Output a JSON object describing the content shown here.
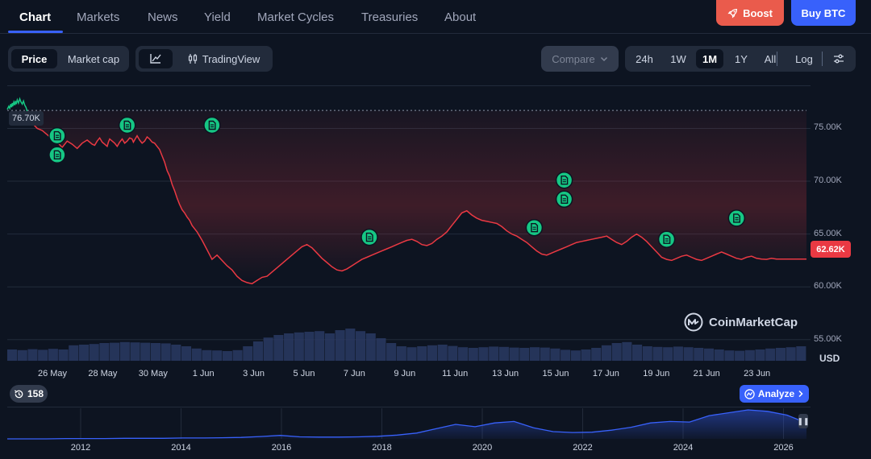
{
  "nav": {
    "tabs": [
      {
        "label": "Chart"
      },
      {
        "label": "Markets"
      },
      {
        "label": "News"
      },
      {
        "label": "Yield"
      },
      {
        "label": "Market Cycles"
      },
      {
        "label": "Treasuries"
      },
      {
        "label": "About"
      }
    ],
    "boost_label": "Boost",
    "buy_label": "Buy BTC"
  },
  "toolbar": {
    "price_label": "Price",
    "marketcap_label": "Market cap",
    "tradingview_label": "TradingView",
    "compare_label": "Compare",
    "ranges": [
      {
        "label": "24h"
      },
      {
        "label": "1W"
      },
      {
        "label": "1M"
      },
      {
        "label": "1Y"
      },
      {
        "label": "All"
      }
    ],
    "log_label": "Log"
  },
  "chart_data": {
    "type": "line",
    "ylim": [
      53000,
      79000
    ],
    "yticks": [
      "75.00K",
      "70.00K",
      "65.00K",
      "60.00K",
      "55.00K"
    ],
    "ytick_values": [
      75000,
      70000,
      65000,
      60000,
      55000
    ],
    "ylabel": "USD",
    "xticks": [
      "26 May",
      "28 May",
      "30 May",
      "1 Jun",
      "3 Jun",
      "5 Jun",
      "7 Jun",
      "9 Jun",
      "11 Jun",
      "13 Jun",
      "15 Jun",
      "17 Jun",
      "19 Jun",
      "21 Jun",
      "23 Jun"
    ],
    "reference_label": "76.70K",
    "reference_value": 76700,
    "current_label": "62.62K",
    "current_value": 62620,
    "series": [
      {
        "x": [
          0.0,
          0.06,
          0.1,
          0.14,
          0.17,
          0.2,
          0.22,
          0.26,
          0.3,
          0.33,
          0.36,
          0.4,
          0.45,
          0.5,
          0.55,
          0.6,
          0.65,
          0.7,
          0.75,
          0.8,
          0.85,
          0.88,
          0.92,
          1.0,
          1.2,
          1.4,
          1.6,
          1.8,
          2.0,
          2.2,
          2.4,
          2.6,
          2.8,
          3.0,
          3.2,
          3.4,
          3.5,
          3.6,
          3.7,
          3.8,
          3.9,
          4.0,
          4.05,
          4.1,
          4.2,
          4.3,
          4.4,
          4.5,
          4.6,
          4.7,
          4.8,
          4.9,
          5.0,
          5.05,
          5.1,
          5.2,
          5.3,
          5.4,
          5.5,
          5.6,
          5.7,
          5.8,
          5.9,
          6.0,
          6.1,
          6.2,
          6.3,
          6.4,
          6.5,
          6.6,
          6.7,
          6.8,
          6.9,
          7.0,
          7.1,
          7.2,
          7.3,
          7.4,
          7.5,
          7.6,
          7.8,
          8.0,
          8.2,
          8.4,
          8.6,
          8.8,
          9.0,
          9.2,
          9.4,
          9.6,
          9.8,
          10.0,
          10.2,
          10.4,
          10.6,
          10.8,
          11.0,
          11.2,
          11.4,
          11.6,
          11.8,
          12.0,
          12.2,
          12.4,
          12.6,
          12.8,
          13.0,
          13.2,
          13.4,
          13.6,
          13.8,
          14.0,
          14.2,
          14.4,
          14.6,
          14.8,
          15.0,
          15.2,
          15.4,
          15.6,
          15.8,
          16.0,
          16.2,
          16.4,
          16.6,
          16.8,
          17.0,
          17.2,
          17.4,
          17.6,
          17.8,
          18.0,
          18.2,
          18.4,
          18.6,
          18.8,
          19.0,
          19.2,
          19.4,
          19.6,
          19.8,
          20.0,
          20.2,
          20.4,
          20.6,
          20.8,
          21.0,
          21.2,
          21.4,
          21.6,
          21.8,
          22.0,
          22.2,
          22.4,
          22.6,
          22.8,
          23.0,
          23.2,
          23.4,
          23.6,
          23.8,
          24.0,
          24.2,
          24.4,
          24.6,
          24.8,
          25.0,
          25.2,
          25.4,
          25.6,
          25.8,
          26.0,
          26.2,
          26.4,
          26.6,
          26.8,
          27.0,
          27.2,
          27.4,
          27.6,
          27.8,
          28.0,
          28.2,
          28.4,
          28.6,
          28.8,
          29.0,
          29.2,
          29.4,
          29.6,
          29.8,
          30.0,
          30.2,
          30.4,
          30.6,
          30.8,
          31.0,
          31.2,
          31.4,
          31.6,
          31.8,
          32.0
        ],
        "y": [
          76800,
          77100,
          76900,
          77300,
          77000,
          77400,
          77100,
          77500,
          77200,
          77600,
          77300,
          77700,
          77400,
          77800,
          77500,
          77300,
          77600,
          77200,
          77000,
          76600,
          76300,
          76000,
          75800,
          75500,
          75000,
          74800,
          74400,
          74000,
          73700,
          73200,
          73800,
          73500,
          73100,
          73600,
          73900,
          73500,
          73400,
          73800,
          74100,
          73700,
          73500,
          73300,
          73700,
          74000,
          73800,
          73600,
          73300,
          73700,
          74000,
          73600,
          73800,
          74100,
          74000,
          73700,
          73900,
          74300,
          73900,
          73600,
          73800,
          74200,
          74000,
          73700,
          73600,
          73300,
          73000,
          72400,
          71800,
          71000,
          70500,
          69700,
          69100,
          68400,
          67800,
          67300,
          67000,
          66600,
          66300,
          65800,
          65500,
          65200,
          64400,
          63500,
          62600,
          63000,
          62500,
          62000,
          61600,
          61000,
          60600,
          60400,
          60300,
          60600,
          60900,
          61000,
          61400,
          61800,
          62200,
          62600,
          63000,
          63400,
          63800,
          64000,
          63700,
          63200,
          62700,
          62300,
          61900,
          61600,
          61500,
          61700,
          62000,
          62300,
          62600,
          62800,
          63000,
          63200,
          63400,
          63600,
          63800,
          64000,
          64200,
          64400,
          64500,
          64300,
          64000,
          63900,
          64100,
          64500,
          64800,
          65200,
          65800,
          66400,
          67000,
          67200,
          66800,
          66500,
          66300,
          66200,
          66100,
          66000,
          65700,
          65300,
          65000,
          64800,
          64500,
          64200,
          63800,
          63400,
          63100,
          63000,
          63200,
          63400,
          63600,
          63800,
          64000,
          64200,
          64300,
          64400,
          64500,
          64600,
          64700,
          64800,
          64500,
          64200,
          64000,
          64300,
          64700,
          65000,
          64700,
          64300,
          63800,
          63300,
          62800,
          62600,
          62500,
          62700,
          62900,
          63000,
          62800,
          62600,
          62500,
          62700,
          62900,
          63100,
          63300,
          63100,
          62900,
          62700,
          62600,
          62800,
          62900,
          62700,
          62620,
          62600,
          62700,
          62620,
          62620,
          62620,
          62620,
          62620,
          62620,
          62620
        ]
      }
    ],
    "events": [
      {
        "x": 2.0,
        "y": 74300
      },
      {
        "x": 2.0,
        "y": 72500
      },
      {
        "x": 4.8,
        "y": 75300
      },
      {
        "x": 8.2,
        "y": 75300
      },
      {
        "x": 14.5,
        "y": 64700
      },
      {
        "x": 21.1,
        "y": 65600
      },
      {
        "x": 22.3,
        "y": 70100
      },
      {
        "x": 22.3,
        "y": 68300
      },
      {
        "x": 26.4,
        "y": 64500
      },
      {
        "x": 29.2,
        "y": 66500
      }
    ],
    "volume": [
      0.35,
      0.33,
      0.36,
      0.34,
      0.37,
      0.35,
      0.48,
      0.5,
      0.52,
      0.55,
      0.56,
      0.58,
      0.57,
      0.56,
      0.55,
      0.54,
      0.5,
      0.45,
      0.38,
      0.33,
      0.32,
      0.3,
      0.33,
      0.45,
      0.6,
      0.72,
      0.8,
      0.85,
      0.88,
      0.9,
      0.92,
      0.85,
      0.95,
      1.0,
      0.92,
      0.85,
      0.7,
      0.55,
      0.45,
      0.42,
      0.45,
      0.48,
      0.5,
      0.46,
      0.42,
      0.4,
      0.42,
      0.44,
      0.43,
      0.41,
      0.4,
      0.42,
      0.41,
      0.38,
      0.34,
      0.32,
      0.35,
      0.4,
      0.48,
      0.55,
      0.58,
      0.5,
      0.45,
      0.43,
      0.42,
      0.44,
      0.42,
      0.4,
      0.38,
      0.35,
      0.32,
      0.31,
      0.33,
      0.35,
      0.38,
      0.4,
      0.42,
      0.45
    ]
  },
  "history": {
    "count_label": "158",
    "analyze_label": "Analyze",
    "years": [
      "2012",
      "2014",
      "2016",
      "2018",
      "2020",
      "2022",
      "2024",
      "2026"
    ],
    "series": [
      0.0,
      0.0,
      0.0,
      0.01,
      0.01,
      0.01,
      0.02,
      0.02,
      0.02,
      0.03,
      0.03,
      0.04,
      0.05,
      0.08,
      0.12,
      0.07,
      0.06,
      0.06,
      0.07,
      0.09,
      0.13,
      0.2,
      0.35,
      0.5,
      0.42,
      0.55,
      0.6,
      0.38,
      0.25,
      0.22,
      0.23,
      0.3,
      0.4,
      0.55,
      0.6,
      0.58,
      0.8,
      0.9,
      1.0,
      0.95,
      0.82,
      0.55
    ]
  },
  "watermark": "CoinMarketCap"
}
